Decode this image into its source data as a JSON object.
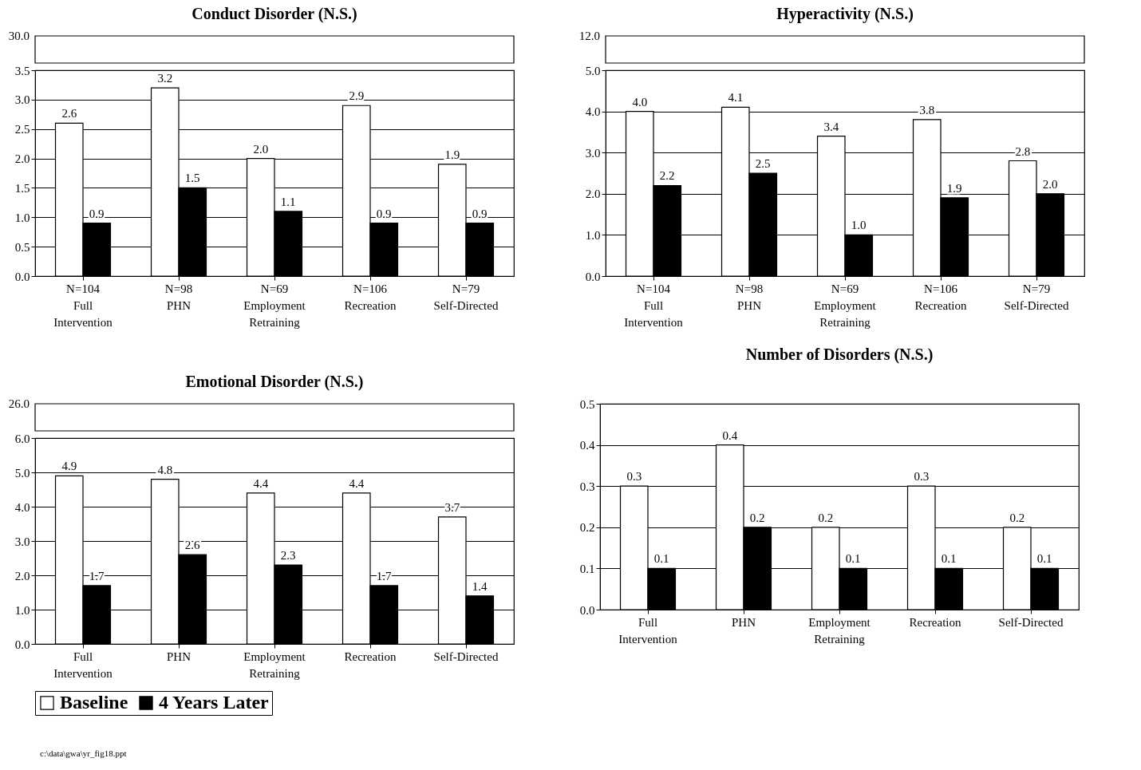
{
  "chart_data": [
    {
      "type": "bar",
      "title": "Conduct Disorder (N.S.)",
      "categories": [
        "N=104\nFull\nIntervention",
        "N=98\nPHN",
        "N=69\nEmployment\nRetraining",
        "N=106\nRecreation",
        "N=79\nSelf-Directed"
      ],
      "series": [
        {
          "name": "Baseline",
          "color": "#ffffff",
          "values": [
            2.6,
            3.2,
            2.0,
            2.9,
            1.9
          ],
          "value_labels": [
            "2.6",
            "3.2",
            "2.0",
            "2.9",
            "1.9"
          ]
        },
        {
          "name": "4 Years Later",
          "color": "#000000",
          "values": [
            0.9,
            1.5,
            1.1,
            0.9,
            0.9
          ],
          "value_labels": [
            "0.9",
            "1.5",
            "1.1",
            "0.9",
            "0.9"
          ]
        }
      ],
      "ylim": [
        0,
        3.5
      ],
      "yticks": [
        {
          "value": 0,
          "label": "0.0"
        },
        {
          "value": 0.5,
          "label": "0.5"
        },
        {
          "value": 1,
          "label": "1.0"
        },
        {
          "value": 1.5,
          "label": "1.5"
        },
        {
          "value": 2,
          "label": "2.0"
        },
        {
          "value": 2.5,
          "label": "2.5"
        },
        {
          "value": 3,
          "label": "3.0"
        },
        {
          "value": 3.5,
          "label": "3.5"
        }
      ],
      "annotations": [
        "30.0"
      ],
      "grid": "y",
      "legend": "bottom"
    },
    {
      "type": "bar",
      "title": "Hyperactivity (N.S.)",
      "categories": [
        "N=104\nFull\nIntervention",
        "N=98\nPHN",
        "N=69\nEmployment\nRetraining",
        "N=106\nRecreation",
        "N=79\nSelf-Directed"
      ],
      "series": [
        {
          "name": "Baseline",
          "color": "#ffffff",
          "values": [
            4.0,
            4.1,
            3.4,
            3.8,
            2.8
          ],
          "value_labels": [
            "4.0",
            "4.1",
            "3.4",
            "3.8",
            "2.8"
          ]
        },
        {
          "name": "4 Years Later",
          "color": "#000000",
          "values": [
            2.2,
            2.5,
            1.0,
            1.9,
            2.0
          ],
          "value_labels": [
            "2.2",
            "2.5",
            "1.0",
            "1.9",
            "2.0"
          ]
        }
      ],
      "ylim": [
        0,
        5
      ],
      "yticks": [
        {
          "value": 0,
          "label": "0.0"
        },
        {
          "value": 1,
          "label": "1.0"
        },
        {
          "value": 2,
          "label": "2.0"
        },
        {
          "value": 3,
          "label": "3.0"
        },
        {
          "value": 4,
          "label": "4.0"
        },
        {
          "value": 5,
          "label": "5.0"
        }
      ],
      "annotations": [
        "12.0"
      ],
      "grid": "y",
      "legend": "bottom"
    },
    {
      "type": "bar",
      "title": "Emotional Disorder (N.S.)",
      "categories": [
        "Full\nIntervention",
        "PHN",
        "Employment\nRetraining",
        "Recreation",
        "Self-Directed"
      ],
      "series": [
        {
          "name": "Baseline",
          "color": "#ffffff",
          "values": [
            4.9,
            4.8,
            4.4,
            4.4,
            3.7
          ],
          "value_labels": [
            "4.9",
            "4.8",
            "4.4",
            "4.4",
            "3.7"
          ]
        },
        {
          "name": "4 Years Later",
          "color": "#000000",
          "values": [
            1.7,
            2.6,
            2.3,
            1.7,
            1.4
          ],
          "value_labels": [
            "1.7",
            "2.6",
            "2.3",
            "1.7",
            "1.4"
          ]
        }
      ],
      "ylim": [
        0,
        6
      ],
      "yticks": [
        {
          "value": 0,
          "label": "0.0"
        },
        {
          "value": 1,
          "label": "1.0"
        },
        {
          "value": 2,
          "label": "2.0"
        },
        {
          "value": 3,
          "label": "3.0"
        },
        {
          "value": 4,
          "label": "4.0"
        },
        {
          "value": 5,
          "label": "5.0"
        },
        {
          "value": 6,
          "label": "6.0"
        }
      ],
      "annotations": [
        "26.0",
        "c:\\data\\gwa\\yr_fig18.ppt"
      ],
      "grid": "y",
      "legend": "bottom"
    },
    {
      "type": "bar",
      "title": "Number of Disorders (N.S.)",
      "categories": [
        "Full\nIntervention",
        "PHN",
        "Employment\nRetraining",
        "Recreation",
        "Self-Directed"
      ],
      "series": [
        {
          "name": "Baseline",
          "color": "#ffffff",
          "values": [
            0.3,
            0.4,
            0.2,
            0.3,
            0.2
          ],
          "value_labels": [
            "0.3",
            "0.4",
            "0.2",
            "0.3",
            "0.2"
          ]
        },
        {
          "name": "4 Years Later",
          "color": "#000000",
          "values": [
            0.1,
            0.2,
            0.1,
            0.1,
            0.1
          ],
          "value_labels": [
            "0.1",
            "0.2",
            "0.1",
            "0.1",
            "0.1"
          ]
        }
      ],
      "ylim": [
        0,
        0.5
      ],
      "yticks": [
        {
          "value": 0,
          "label": "0.0"
        },
        {
          "value": 0.1,
          "label": "0.1"
        },
        {
          "value": 0.2,
          "label": "0.2"
        },
        {
          "value": 0.3,
          "label": "0.3"
        },
        {
          "value": 0.4,
          "label": "0.4"
        },
        {
          "value": 0.5,
          "label": "0.5"
        }
      ],
      "grid": "y",
      "legend": "bottom"
    }
  ]
}
